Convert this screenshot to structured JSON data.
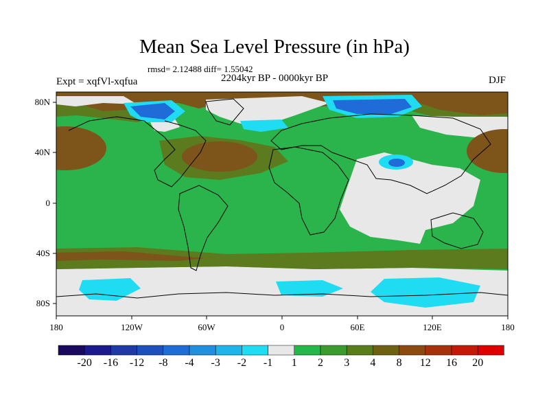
{
  "title": "Mean Sea Level Pressure (in hPa)",
  "stats": "rmsd= 2.12488 diff= 1.55042",
  "experiment": "Expt = xqfVl-xqfua",
  "period": "2204kyr BP - 0000kyr BP",
  "season": "DJF",
  "axes": {
    "x_ticks": [
      "180",
      "120W",
      "60W",
      "0",
      "60E",
      "120E",
      "180"
    ],
    "y_ticks": [
      "80N",
      "40N",
      "0",
      "40S",
      "80S"
    ]
  },
  "colorbar": {
    "labels": [
      "-20",
      "-16",
      "-12",
      "-8",
      "-4",
      "-3",
      "-2",
      "-1",
      "1",
      "2",
      "3",
      "4",
      "8",
      "12",
      "16",
      "20"
    ],
    "colors": [
      "#1a0a5e",
      "#1c1a8c",
      "#1f3aa8",
      "#1e4fbf",
      "#1f6cd8",
      "#1f8fe0",
      "#1fb4ea",
      "#20dcf2",
      "#e8e8e8",
      "#22b84a",
      "#3c9a2e",
      "#5a7d1c",
      "#6e6212",
      "#8a4a10",
      "#a8300c",
      "#c41808",
      "#dc0000"
    ]
  },
  "colors": {
    "ocean_green": "#2cb44c",
    "dark_green": "#5c7a1e",
    "brown": "#7d5419",
    "gray": "#e8e8e8",
    "blue": "#1f6cd8",
    "cyan": "#20dcf2"
  }
}
